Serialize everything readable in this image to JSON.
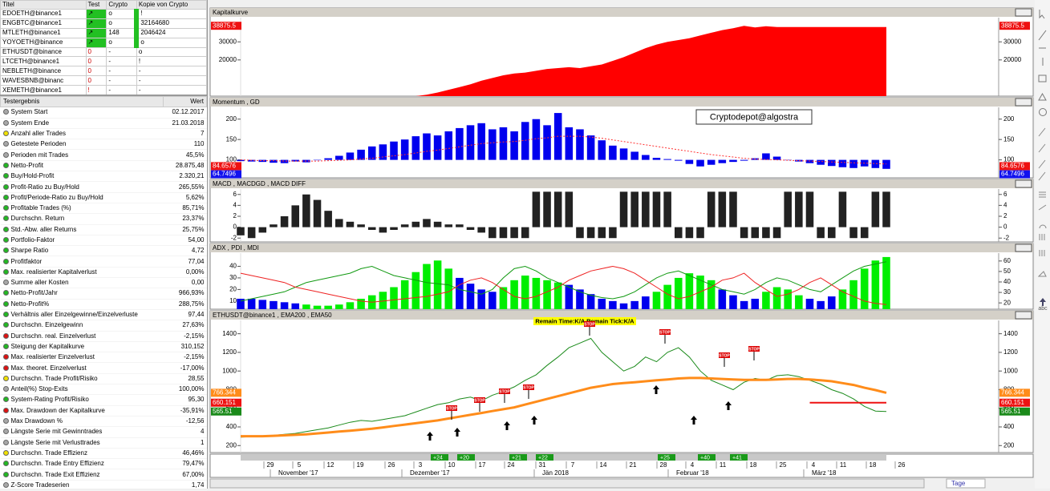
{
  "watchlist": {
    "columns": [
      "Titel",
      "Test",
      "Crypto",
      "Kopie von Crypto"
    ],
    "rows": [
      {
        "cells": [
          "EDOETH@binance1",
          "↗",
          "o",
          "!"
        ],
        "green": true
      },
      {
        "cells": [
          "ENGBTC@binance1",
          "↗",
          "o",
          "32164680"
        ],
        "green": true
      },
      {
        "cells": [
          "MTLETH@binance1",
          "↗",
          "148",
          "2046424"
        ],
        "green": true
      },
      {
        "cells": [
          "YOYOETH@binance",
          "↗",
          "o",
          "o"
        ],
        "green": true
      },
      {
        "cells": [
          "ETHUSDT@binance",
          "0",
          "-",
          "o"
        ],
        "green": false
      },
      {
        "cells": [
          "LTCETH@binance1",
          "0",
          "-",
          "!"
        ],
        "green": false
      },
      {
        "cells": [
          "NEBLETH@binance",
          "0",
          "-",
          "-"
        ],
        "green": false
      },
      {
        "cells": [
          "WAVESBNB@binanc",
          "0",
          "-",
          "-"
        ],
        "green": false
      },
      {
        "cells": [
          "XEMETH@binance1",
          "!",
          "-",
          "-"
        ],
        "green": false
      }
    ]
  },
  "results": {
    "columns": [
      "Testergebnis",
      "Wert"
    ],
    "rows": [
      {
        "name": "System Start",
        "value": "02.12.2017",
        "dot": "#a8a8a8"
      },
      {
        "name": "System Ende",
        "value": "21.03.2018",
        "dot": "#a8a8a8"
      },
      {
        "name": "Anzahl aller Trades",
        "value": "7",
        "dot": "#f0e000"
      },
      {
        "name": "Getestete Perioden",
        "value": "110",
        "dot": "#a8a8a8"
      },
      {
        "name": "Perioden mit Trades",
        "value": "45,5%",
        "dot": "#a8a8a8"
      },
      {
        "name": "Netto-Profit",
        "value": "28.875,48",
        "dot": "#22b822"
      },
      {
        "name": "Buy/Hold-Profit",
        "value": "2.320,21",
        "dot": "#22b822"
      },
      {
        "name": "Profit-Ratio zu Buy/Hold",
        "value": "265,55%",
        "dot": "#22b822"
      },
      {
        "name": "Profit/Periode-Ratio zu Buy/Hold",
        "value": "5,62%",
        "dot": "#22b822"
      },
      {
        "name": "Profitable Trades (%)",
        "value": "85,71%",
        "dot": "#22b822"
      },
      {
        "name": "Durchschn. Return",
        "value": "23,37%",
        "dot": "#22b822"
      },
      {
        "name": "Std.-Abw. aller Returns",
        "value": "25,75%",
        "dot": "#22b822"
      },
      {
        "name": "Portfolio-Faktor",
        "value": "54,00",
        "dot": "#22b822"
      },
      {
        "name": "Sharpe Ratio",
        "value": "4,72",
        "dot": "#22b822"
      },
      {
        "name": "Profitfaktor",
        "value": "77,04",
        "dot": "#22b822"
      },
      {
        "name": "Max. realisierter Kapitalverlust",
        "value": "0,00%",
        "dot": "#22b822"
      },
      {
        "name": "Summe aller Kosten",
        "value": "0,00",
        "dot": "#a8a8a8"
      },
      {
        "name": "Netto-Profit/Jahr",
        "value": "966,93%",
        "dot": "#22b822"
      },
      {
        "name": "Netto-Profit%",
        "value": "288,75%",
        "dot": "#22b822"
      },
      {
        "name": "Verhältnis aller Einzelgewinne/Einzelverluste",
        "value": "97,44",
        "dot": "#22b822"
      },
      {
        "name": "Durchschn. Einzelgewinn",
        "value": "27,63%",
        "dot": "#22b822"
      },
      {
        "name": "Durchschn. real. Einzelverlust",
        "value": "-2,15%",
        "dot": "#dd1111"
      },
      {
        "name": "Steigung der Kapitalkurve",
        "value": "310,152",
        "dot": "#22b822"
      },
      {
        "name": "Max. realisierter Einzelverlust",
        "value": "-2,15%",
        "dot": "#dd1111"
      },
      {
        "name": "Max. theoret. Einzelverlust",
        "value": "-17,00%",
        "dot": "#dd1111"
      },
      {
        "name": "Durchschn. Trade Profit/Risiko",
        "value": "28,55",
        "dot": "#f0e000"
      },
      {
        "name": "Anteil(%) Stop-Exits",
        "value": "100,00%",
        "dot": "#a8a8a8"
      },
      {
        "name": "System-Rating Profit/Risiko",
        "value": "95,30",
        "dot": "#22b822"
      },
      {
        "name": "Max. Drawdown der Kapitalkurve",
        "value": "-35,91%",
        "dot": "#dd1111"
      },
      {
        "name": "Max Drawdown %",
        "value": "-12,56",
        "dot": "#a8a8a8"
      },
      {
        "name": "Längste Serie mit Gewinntrades",
        "value": "4",
        "dot": "#a8a8a8"
      },
      {
        "name": "Längste Serie mit Verlusttrades",
        "value": "1",
        "dot": "#a8a8a8"
      },
      {
        "name": "Durchschn. Trade Effizienz",
        "value": "46,46%",
        "dot": "#f0e000"
      },
      {
        "name": "Durchschn. Trade Entry Effizienz",
        "value": "79,47%",
        "dot": "#22b822"
      },
      {
        "name": "Durchschn. Trade Exit Effizienz",
        "value": "67,00%",
        "dot": "#22b822"
      },
      {
        "name": "Z-Score Tradeserien",
        "value": "1,74",
        "dot": "#a8a8a8"
      }
    ]
  },
  "chart_data": [
    {
      "type": "area",
      "title": "Kapitalkurve",
      "color": "#ff0000",
      "values": [
        null,
        null,
        null,
        null,
        null,
        null,
        null,
        null,
        null,
        null,
        null,
        null,
        null,
        null,
        null,
        null,
        0,
        800,
        2000,
        3500,
        5000,
        6500,
        8500,
        10000,
        11500,
        12500,
        13000,
        14000,
        15000,
        15500,
        16000,
        15500,
        16500,
        17500,
        19500,
        21500,
        24000,
        26500,
        28500,
        30000,
        31000,
        32000,
        33500,
        35000,
        36500,
        37500,
        38875,
        38000,
        38600,
        38200,
        38200,
        38200,
        38200,
        38200,
        38200,
        38200,
        38200,
        38200,
        38200,
        38200
      ],
      "ylim": [
        0,
        42500
      ],
      "yticks": [
        20000,
        30000
      ],
      "last_values": [
        {
          "value": 38875.5,
          "label": "38875.5",
          "bg": "#ee1111"
        }
      ]
    },
    {
      "type": "bar",
      "title": "Momentum , GD",
      "bar_base": 100,
      "annotation": "Cryptodepot@algostra",
      "series": [
        {
          "type": "bar",
          "color": "#0000ee",
          "values": [
            97,
            96,
            95,
            93,
            92,
            96,
            94,
            100,
            104,
            110,
            118,
            125,
            133,
            138,
            145,
            150,
            158,
            165,
            160,
            170,
            178,
            185,
            190,
            175,
            180,
            170,
            193,
            200,
            185,
            215,
            180,
            175,
            160,
            148,
            135,
            128,
            120,
            112,
            105,
            102,
            98,
            90,
            84,
            88,
            92,
            95,
            98,
            104,
            116,
            108,
            100,
            96,
            92,
            88,
            85,
            82,
            80,
            84,
            80,
            78
          ]
        },
        {
          "type": "line",
          "color": "#ff3030",
          "dash": true,
          "values": [
            100,
            99,
            98,
            98,
            97,
            97,
            97,
            97,
            98,
            99,
            100,
            102,
            104,
            107,
            110,
            113,
            117,
            121,
            124,
            128,
            132,
            136,
            140,
            142,
            144,
            145,
            148,
            152,
            154,
            158,
            158,
            158,
            156,
            153,
            149,
            145,
            141,
            137,
            133,
            129,
            125,
            121,
            117,
            113,
            110,
            107,
            104,
            102,
            101,
            100,
            99,
            98,
            97,
            96,
            95,
            94,
            93,
            92,
            91,
            90
          ]
        }
      ],
      "ylim": [
        56,
        225
      ],
      "yticks": [
        100,
        150,
        200
      ],
      "last_values": [
        {
          "value": 84.6576,
          "label": "84.6576",
          "bg": "#ee1111"
        },
        {
          "value": 64.7496,
          "label": "64.7496",
          "bg": "#1111ee"
        }
      ]
    },
    {
      "type": "bar",
      "title": "MACD , MACDGD , MACD DIFF",
      "series": [
        {
          "type": "bar",
          "color": "#222222",
          "values": [
            -1.5,
            -2,
            -1,
            0.5,
            2,
            4,
            6,
            5,
            3,
            1.5,
            1,
            0.5,
            -0.5,
            -1,
            -0.5,
            0.5,
            1,
            1.5,
            1,
            0.5,
            0.5,
            -0.5,
            -1,
            -2,
            -2,
            -2,
            -2,
            6.5,
            6.5,
            6.5,
            6.5,
            -2,
            -2,
            -2,
            -2,
            6.5,
            6.5,
            6.5,
            6.5,
            6.5,
            -2,
            -2,
            -2,
            6.5,
            6.5,
            6.5,
            -2,
            -2,
            -2,
            -2,
            6.5,
            6.5,
            6.5,
            -2,
            -2,
            6.5,
            -2,
            -2,
            6.5,
            6.5
          ]
        }
      ],
      "ylim": [
        -2.7,
        6.7
      ],
      "yticks": [
        -2,
        0,
        2,
        4,
        6
      ]
    },
    {
      "type": "adx",
      "title": "ADX , PDI , MDI",
      "up_color": "#00ee00",
      "down_color": "#0000ee",
      "series": [
        {
          "type": "bar",
          "values": [
            12,
            12,
            11,
            10,
            9,
            8,
            7,
            6,
            6,
            7,
            9,
            12,
            15,
            18,
            22,
            28,
            35,
            42,
            45,
            38,
            30,
            25,
            20,
            18,
            22,
            28,
            32,
            30,
            28,
            26,
            24,
            20,
            16,
            12,
            10,
            8,
            10,
            14,
            18,
            24,
            30,
            34,
            32,
            28,
            20,
            15,
            10,
            12,
            18,
            22,
            20,
            15,
            12,
            10,
            14,
            20,
            28,
            38,
            45,
            48
          ]
        },
        {
          "type": "line",
          "color": "#119911",
          "values": [
            10,
            12,
            14,
            16,
            18,
            22,
            26,
            28,
            30,
            32,
            34,
            38,
            40,
            36,
            32,
            30,
            28,
            26,
            25,
            24,
            20,
            18,
            16,
            20,
            30,
            38,
            40,
            36,
            30,
            26,
            22,
            18,
            15,
            13,
            12,
            14,
            18,
            24,
            30,
            34,
            36,
            32,
            28,
            24,
            20,
            18,
            16,
            20,
            26,
            30,
            28,
            24,
            20,
            18,
            24,
            30,
            36,
            40,
            42,
            44
          ]
        },
        {
          "type": "line",
          "color": "#ee2222",
          "values": [
            34,
            32,
            30,
            28,
            26,
            22,
            20,
            18,
            16,
            14,
            12,
            10,
            9,
            10,
            11,
            12,
            13,
            14,
            16,
            18,
            24,
            28,
            30,
            26,
            20,
            14,
            12,
            14,
            18,
            22,
            28,
            32,
            36,
            38,
            40,
            38,
            34,
            28,
            22,
            16,
            12,
            14,
            18,
            22,
            28,
            30,
            34,
            26,
            20,
            14,
            16,
            20,
            26,
            30,
            24,
            18,
            14,
            10,
            8,
            7
          ]
        }
      ],
      "ylim": [
        3,
        50
      ],
      "yticks": [
        10,
        20,
        30,
        40
      ],
      "y2lim": [
        14,
        66
      ],
      "y2ticks": [
        20,
        30,
        40,
        50,
        60
      ]
    },
    {
      "type": "line",
      "title": "ETHUSDT@binance1 , EMA200 , EMA50",
      "annotation": "Remain Time:K/A  Remain Tick:K/A",
      "stop_label": "STOP",
      "series": [
        {
          "color": "#1a8a1a",
          "values": [
            290,
            295,
            300,
            310,
            320,
            330,
            350,
            370,
            390,
            420,
            450,
            470,
            460,
            480,
            500,
            520,
            560,
            600,
            640,
            660,
            700,
            720,
            680,
            740,
            780,
            830,
            900,
            960,
            1060,
            1150,
            1250,
            1300,
            1350,
            1200,
            1100,
            1000,
            1050,
            1150,
            1100,
            1200,
            1250,
            1150,
            1000,
            900,
            850,
            800,
            880,
            920,
            900,
            950,
            960,
            940,
            900,
            860,
            800,
            760,
            700,
            620,
            570,
            565
          ]
        },
        {
          "color": "#ff8c1a",
          "width": 3,
          "values": [
            300,
            300,
            300,
            305,
            310,
            315,
            320,
            330,
            340,
            350,
            360,
            370,
            380,
            395,
            410,
            425,
            440,
            455,
            470,
            490,
            510,
            530,
            550,
            570,
            590,
            610,
            640,
            670,
            700,
            730,
            760,
            790,
            820,
            840,
            860,
            870,
            880,
            890,
            900,
            910,
            920,
            925,
            925,
            920,
            915,
            910,
            905,
            905,
            905,
            910,
            915,
            915,
            910,
            900,
            890,
            870,
            850,
            820,
            795,
            766
          ]
        },
        {
          "color": "#ee1111",
          "width": 2,
          "values": [
            null,
            null,
            null,
            null,
            null,
            null,
            null,
            null,
            null,
            null,
            null,
            null,
            null,
            null,
            null,
            null,
            null,
            null,
            null,
            null,
            null,
            null,
            null,
            null,
            null,
            null,
            null,
            null,
            null,
            null,
            null,
            null,
            null,
            null,
            null,
            null,
            null,
            null,
            null,
            null,
            null,
            null,
            null,
            null,
            null,
            null,
            null,
            null,
            null,
            null,
            null,
            null,
            660,
            660,
            660,
            660,
            660,
            660,
            660,
            660
          ]
        }
      ],
      "ylim": [
        125,
        1526
      ],
      "yticks": [
        200,
        400,
        600,
        800,
        1000,
        1200,
        1400
      ],
      "last_values": [
        {
          "value": 766.344,
          "label": "766.344",
          "bg": "#ff8c1a"
        },
        {
          "value": 660.151,
          "label": "660.151",
          "bg": "#ee1111"
        },
        {
          "value": 565.51,
          "label": "565.51",
          "bg": "#1a8a1a"
        }
      ]
    }
  ],
  "date_axis": {
    "days": [
      "29",
      "5",
      "12",
      "19",
      "26",
      "3",
      "10",
      "17",
      "24",
      "31",
      "7",
      "14",
      "21",
      "28",
      "4",
      "11",
      "18",
      "25",
      "4",
      "11",
      "18",
      "26"
    ],
    "months": [
      "November '17",
      "Dezember '17",
      "Jän 2018",
      "Februar '18",
      "März '18"
    ],
    "tags": [
      "+24",
      "+20",
      "+21",
      "+22",
      "+25",
      "+40",
      "+41"
    ]
  },
  "toolbar": {
    "period": "Tage",
    "text_tool": "abc"
  }
}
